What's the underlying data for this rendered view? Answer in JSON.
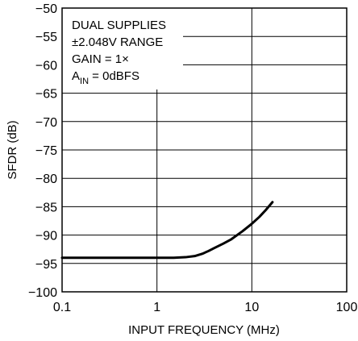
{
  "chart_data": {
    "type": "line",
    "title": "",
    "xlabel": "INPUT FREQUENCY (MHz)",
    "ylabel": "SFDR (dB)",
    "x_scale": "log",
    "xlim": [
      0.1,
      100
    ],
    "ylim": [
      -100,
      -50
    ],
    "x_ticks": [
      0.1,
      1,
      10,
      100
    ],
    "x_tick_labels": [
      "0.1",
      "1",
      "10",
      "100"
    ],
    "y_ticks": [
      -50,
      -55,
      -60,
      -65,
      -70,
      -75,
      -80,
      -85,
      -90,
      -95,
      -100
    ],
    "y_tick_labels": [
      "−50",
      "−55",
      "−60",
      "−65",
      "−70",
      "−75",
      "−80",
      "−85",
      "−90",
      "−95",
      "−100"
    ],
    "grid": true,
    "annotation_lines": [
      "DUAL SUPPLIES",
      "±2.048V RANGE",
      "GAIN = 1×"
    ],
    "annotation_ain": {
      "main": "A",
      "sub": "IN",
      "rest": " = 0dBFS"
    },
    "series": [
      {
        "x": [
          0.1,
          0.5,
          1,
          1.5,
          2,
          2.5,
          3,
          3.5,
          4,
          5,
          6,
          8,
          10,
          12,
          14,
          16.5
        ],
        "y": [
          -94,
          -94,
          -94,
          -94,
          -93.9,
          -93.7,
          -93.3,
          -92.8,
          -92.3,
          -91.5,
          -90.8,
          -89.3,
          -88,
          -86.8,
          -85.6,
          -84.2
        ]
      }
    ],
    "line_color": "#000000"
  }
}
